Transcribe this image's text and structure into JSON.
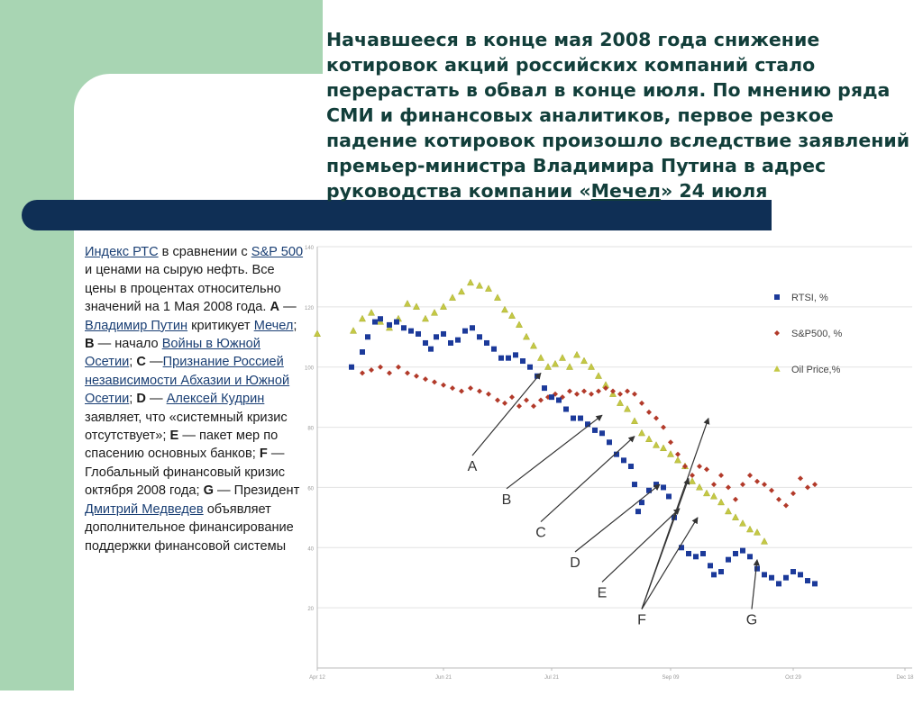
{
  "heading": {
    "part1": "Начавшееся в конце мая 2008 года снижение котировок акций российских компаний стало перерастать в обвал в конце июля. По мнению ряда СМИ и финансовых аналитиков, первое резкое падение котировок произошло вследствие заявлений премьер-министра Владимира Путина в адрес руководства компании «",
    "link": "Мечел",
    "part2": "» 24 июля"
  },
  "caption": {
    "l_rts": "Индекс РТС",
    "t1": " в сравнении с ",
    "l_sp": "S&P 500",
    "t2": " и ценами на сырую нефть. Все цены в процентах относительно значений на 1 Мая 2008 года. ",
    "a": "A",
    "t3": " — ",
    "l_putin": "Владимир Путин",
    "t4": " критикует ",
    "l_mechel": "Мечел",
    "t5": "; ",
    "b": "B",
    "t6": " — начало ",
    "l_war": "Войны в Южной Осетии",
    "t7": "; ",
    "c": "C",
    "t8": " —",
    "l_recog": "Признание Россией независимости Абхазии и Южной Осетии",
    "t9": "; ",
    "d": "D",
    "t10": " — ",
    "l_kudrin": "Алексей Кудрин",
    "t11": " заявляет, что «системный кризис отсутствует»; ",
    "e": "E",
    "t12": " — пакет мер по спасению основных банков; ",
    "f": "F",
    "t13": " — Глобальный финансовый кризис октября 2008 года; ",
    "g": "G",
    "t14": " — Президент ",
    "l_medv": "Дмитрий Медведев",
    "t15": " объявляет дополнительное финансирование поддержки финансовой системы"
  },
  "chart_data": {
    "type": "line",
    "ylim": [
      0,
      140
    ],
    "yticks": [
      {
        "v": 20,
        "label": "20"
      },
      {
        "v": 40,
        "label": "40"
      },
      {
        "v": 60,
        "label": "60"
      },
      {
        "v": 80,
        "label": "80"
      },
      {
        "v": 100,
        "label": "100"
      },
      {
        "v": 120,
        "label": "120"
      },
      {
        "v": 140,
        "label": "140"
      }
    ],
    "xticks": [
      {
        "d": 0,
        "label": "Apr 12"
      },
      {
        "d": 70,
        "label": "Jun 21"
      },
      {
        "d": 130,
        "label": "Jul 21"
      },
      {
        "d": 196,
        "label": "Sep 09"
      },
      {
        "d": 264,
        "label": "Oct 29"
      },
      {
        "d": 326,
        "label": "Dec 18"
      }
    ],
    "xmax": 330,
    "series": [
      {
        "name": "RTSI, %",
        "color": "#1c3a9a",
        "marker": "square",
        "points": [
          [
            19,
            100
          ],
          [
            25,
            105
          ],
          [
            28,
            110
          ],
          [
            32,
            115
          ],
          [
            35,
            116
          ],
          [
            40,
            114
          ],
          [
            44,
            115
          ],
          [
            48,
            113
          ],
          [
            52,
            112
          ],
          [
            56,
            111
          ],
          [
            60,
            108
          ],
          [
            63,
            106
          ],
          [
            66,
            110
          ],
          [
            70,
            111
          ],
          [
            74,
            108
          ],
          [
            78,
            109
          ],
          [
            82,
            112
          ],
          [
            86,
            113
          ],
          [
            90,
            110
          ],
          [
            94,
            108
          ],
          [
            98,
            106
          ],
          [
            102,
            103
          ],
          [
            106,
            103
          ],
          [
            110,
            104
          ],
          [
            114,
            102
          ],
          [
            118,
            100
          ],
          [
            122,
            97
          ],
          [
            126,
            93
          ],
          [
            130,
            90
          ],
          [
            134,
            89
          ],
          [
            138,
            86
          ],
          [
            142,
            83
          ],
          [
            146,
            83
          ],
          [
            150,
            81
          ],
          [
            154,
            79
          ],
          [
            158,
            78
          ],
          [
            162,
            75
          ],
          [
            166,
            71
          ],
          [
            170,
            69
          ],
          [
            174,
            67
          ],
          [
            176,
            61
          ],
          [
            178,
            52
          ],
          [
            180,
            55
          ],
          [
            184,
            59
          ],
          [
            188,
            61
          ],
          [
            192,
            60
          ],
          [
            195,
            57
          ],
          [
            198,
            50
          ],
          [
            202,
            40
          ],
          [
            206,
            38
          ],
          [
            210,
            37
          ],
          [
            214,
            38
          ],
          [
            218,
            34
          ],
          [
            220,
            31
          ],
          [
            224,
            32
          ],
          [
            228,
            36
          ],
          [
            232,
            38
          ],
          [
            236,
            39
          ],
          [
            240,
            37
          ],
          [
            244,
            33
          ],
          [
            248,
            31
          ],
          [
            252,
            30
          ],
          [
            256,
            28
          ],
          [
            260,
            30
          ],
          [
            264,
            32
          ],
          [
            268,
            31
          ],
          [
            272,
            29
          ],
          [
            276,
            28
          ]
        ]
      },
      {
        "name": "S&P500, %",
        "color": "#b23a2a",
        "marker": "diamond",
        "points": [
          [
            19,
            100
          ],
          [
            25,
            98
          ],
          [
            30,
            99
          ],
          [
            35,
            100
          ],
          [
            40,
            98
          ],
          [
            45,
            100
          ],
          [
            50,
            98
          ],
          [
            55,
            97
          ],
          [
            60,
            96
          ],
          [
            65,
            95
          ],
          [
            70,
            94
          ],
          [
            75,
            93
          ],
          [
            80,
            92
          ],
          [
            85,
            93
          ],
          [
            90,
            92
          ],
          [
            95,
            91
          ],
          [
            100,
            89
          ],
          [
            104,
            88
          ],
          [
            108,
            90
          ],
          [
            112,
            87
          ],
          [
            116,
            89
          ],
          [
            120,
            87
          ],
          [
            124,
            89
          ],
          [
            128,
            90
          ],
          [
            132,
            91
          ],
          [
            136,
            90
          ],
          [
            140,
            92
          ],
          [
            144,
            91
          ],
          [
            148,
            92
          ],
          [
            152,
            91
          ],
          [
            156,
            92
          ],
          [
            160,
            93
          ],
          [
            164,
            92
          ],
          [
            168,
            91
          ],
          [
            172,
            92
          ],
          [
            176,
            91
          ],
          [
            180,
            88
          ],
          [
            184,
            85
          ],
          [
            188,
            83
          ],
          [
            192,
            80
          ],
          [
            196,
            75
          ],
          [
            200,
            71
          ],
          [
            204,
            67
          ],
          [
            208,
            64
          ],
          [
            212,
            67
          ],
          [
            216,
            66
          ],
          [
            220,
            61
          ],
          [
            224,
            64
          ],
          [
            228,
            60
          ],
          [
            232,
            56
          ],
          [
            236,
            61
          ],
          [
            240,
            64
          ],
          [
            244,
            62
          ],
          [
            248,
            61
          ],
          [
            252,
            59
          ],
          [
            256,
            56
          ],
          [
            260,
            54
          ],
          [
            264,
            58
          ],
          [
            268,
            63
          ],
          [
            272,
            60
          ],
          [
            276,
            61
          ]
        ]
      },
      {
        "name": "Oil Price,%",
        "color": "#c4c845",
        "marker": "triangle",
        "points": [
          [
            0,
            111
          ],
          [
            20,
            112
          ],
          [
            25,
            116
          ],
          [
            30,
            118
          ],
          [
            35,
            115
          ],
          [
            40,
            113
          ],
          [
            45,
            116
          ],
          [
            50,
            121
          ],
          [
            55,
            120
          ],
          [
            60,
            116
          ],
          [
            65,
            118
          ],
          [
            70,
            120
          ],
          [
            75,
            123
          ],
          [
            80,
            125
          ],
          [
            85,
            128
          ],
          [
            90,
            127
          ],
          [
            95,
            126
          ],
          [
            100,
            123
          ],
          [
            104,
            119
          ],
          [
            108,
            117
          ],
          [
            112,
            114
          ],
          [
            116,
            110
          ],
          [
            120,
            107
          ],
          [
            124,
            103
          ],
          [
            128,
            100
          ],
          [
            132,
            101
          ],
          [
            136,
            103
          ],
          [
            140,
            100
          ],
          [
            144,
            104
          ],
          [
            148,
            102
          ],
          [
            152,
            100
          ],
          [
            156,
            97
          ],
          [
            160,
            94
          ],
          [
            164,
            91
          ],
          [
            168,
            88
          ],
          [
            172,
            86
          ],
          [
            176,
            82
          ],
          [
            180,
            78
          ],
          [
            184,
            76
          ],
          [
            188,
            74
          ],
          [
            192,
            73
          ],
          [
            196,
            71
          ],
          [
            200,
            69
          ],
          [
            204,
            67
          ],
          [
            208,
            62
          ],
          [
            212,
            60
          ],
          [
            216,
            58
          ],
          [
            220,
            57
          ],
          [
            224,
            55
          ],
          [
            228,
            52
          ],
          [
            232,
            50
          ],
          [
            236,
            48
          ],
          [
            240,
            46
          ],
          [
            244,
            45
          ],
          [
            248,
            42
          ]
        ]
      }
    ],
    "annotations": [
      {
        "label": "A",
        "series": 0,
        "d": 124,
        "v": 98,
        "tx": 86,
        "ty": 67
      },
      {
        "label": "B",
        "series": 0,
        "d": 158,
        "v": 84,
        "tx": 105,
        "ty": 56
      },
      {
        "label": "C",
        "series": 0,
        "d": 176,
        "v": 77,
        "tx": 124,
        "ty": 45
      },
      {
        "label": "D",
        "series": 0,
        "d": 190,
        "v": 61,
        "tx": 143,
        "ty": 35
      },
      {
        "label": "E",
        "series": 0,
        "d": 201,
        "v": 53,
        "tx": 158,
        "ty": 25
      },
      {
        "label": "F",
        "series": 0,
        "d": 206,
        "v": 63,
        "tx": 180,
        "ty": 16
      },
      {
        "label": "F",
        "series": 0,
        "d": 211,
        "v": 50,
        "tx": 180,
        "ty": 16
      },
      {
        "label": "F",
        "series": 1,
        "d": 217,
        "v": 83,
        "tx": 180,
        "ty": 16
      },
      {
        "label": "G",
        "series": 0,
        "d": 244,
        "v": 36,
        "tx": 241,
        "ty": 16
      }
    ]
  }
}
